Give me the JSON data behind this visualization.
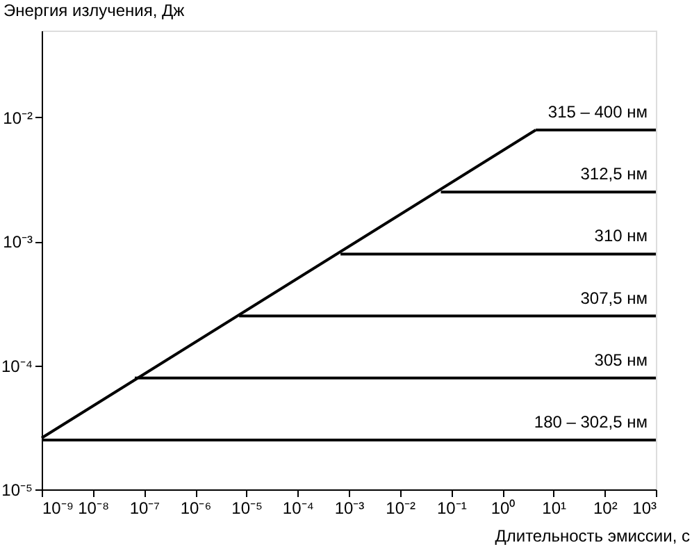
{
  "chart_data": {
    "type": "line",
    "xlabel": "Длительность эмиссии, с",
    "ylabel": "Энергия излучения, Дж",
    "log": "xy",
    "grid": false,
    "xlim": [
      1e-09,
      1000
    ],
    "ylim": [
      1e-05,
      0.05
    ],
    "xticks": [
      {
        "value": 1e-09,
        "label": "10⁻⁹"
      },
      {
        "value": 1e-08,
        "label": "10⁻⁸"
      },
      {
        "value": 1e-07,
        "label": "10⁻⁷"
      },
      {
        "value": 1e-06,
        "label": "10⁻⁶"
      },
      {
        "value": 1e-05,
        "label": "10⁻⁵"
      },
      {
        "value": 0.0001,
        "label": "10⁻⁴"
      },
      {
        "value": 0.001,
        "label": "10⁻³"
      },
      {
        "value": 0.01,
        "label": "10⁻²"
      },
      {
        "value": 0.1,
        "label": "10⁻¹"
      },
      {
        "value": 1,
        "label": "10⁰"
      },
      {
        "value": 10,
        "label": "10¹"
      },
      {
        "value": 100,
        "label": "10²"
      },
      {
        "value": 1000,
        "label": "10³"
      }
    ],
    "yticks": [
      {
        "value": 1e-05,
        "label": "10⁻⁵"
      },
      {
        "value": 0.0001,
        "label": "10⁻⁴"
      },
      {
        "value": 0.001,
        "label": "10⁻³"
      },
      {
        "value": 0.01,
        "label": "10⁻²"
      }
    ],
    "series": [
      {
        "color": "#000000",
        "x": [
          1e-09,
          4.5
        ],
        "values": [
          2.6e-05,
          0.0079
        ]
      },
      {
        "name": "315 – 400 нм",
        "color": "#000000",
        "x": [
          4.5,
          1000
        ],
        "values": [
          0.0079,
          0.0079
        ]
      },
      {
        "name": "312,5 нм",
        "color": "#000000",
        "x": [
          0.063,
          1000
        ],
        "values": [
          0.0025,
          0.0025
        ]
      },
      {
        "name": "310 нм",
        "color": "#000000",
        "x": [
          0.00069,
          1000
        ],
        "values": [
          0.00079,
          0.00079
        ]
      },
      {
        "name": "307,5 нм",
        "color": "#000000",
        "x": [
          7.2e-06,
          1000
        ],
        "values": [
          0.00025,
          0.00025
        ]
      },
      {
        "name": "305 нм",
        "color": "#000000",
        "x": [
          6.6e-08,
          1000
        ],
        "values": [
          7.9e-05,
          7.9e-05
        ]
      },
      {
        "name": "180 – 302,5 нм",
        "color": "#000000",
        "x": [
          1e-09,
          1000
        ],
        "values": [
          2.5e-05,
          2.5e-05
        ]
      }
    ]
  }
}
